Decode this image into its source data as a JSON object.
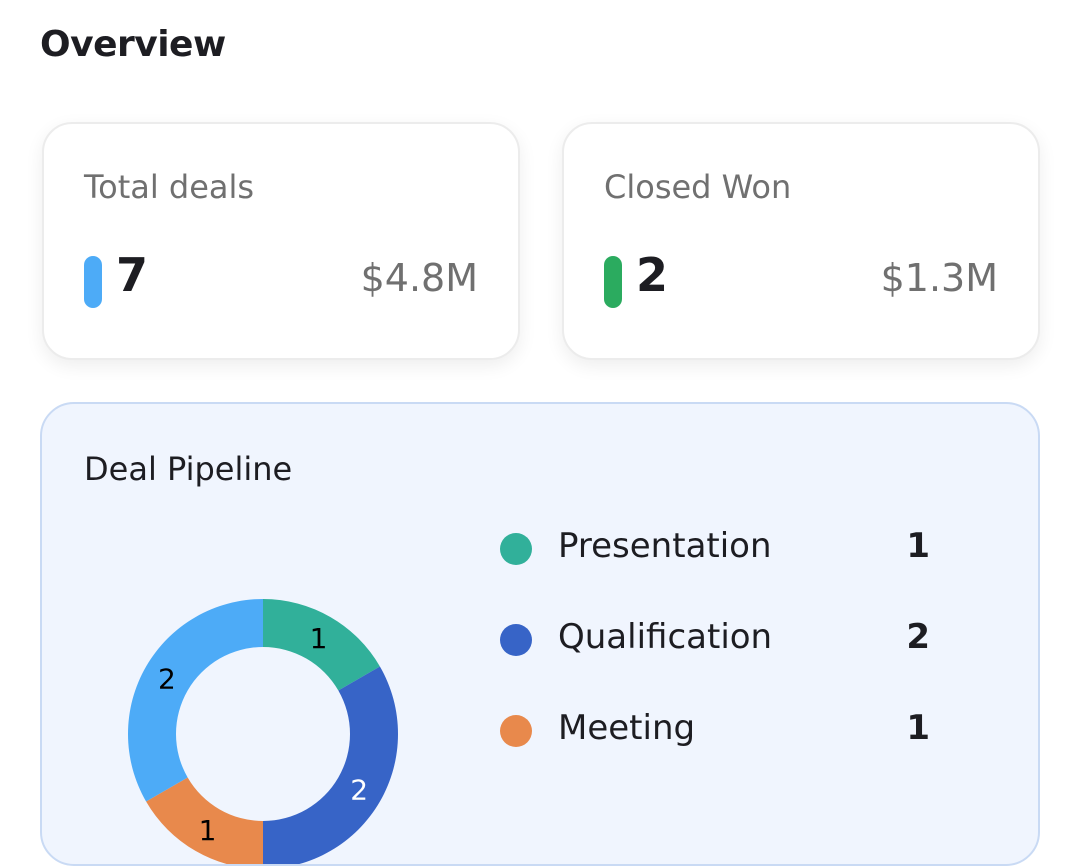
{
  "header": {
    "title": "Overview"
  },
  "cards": [
    {
      "label": "Total deals",
      "count": "7",
      "amount": "$4.8M",
      "color": "#4dabf7"
    },
    {
      "label": "Closed Won",
      "count": "2",
      "amount": "$1.3M",
      "color": "#2bab5f"
    }
  ],
  "pipeline": {
    "title": "Deal Pipeline",
    "legend": [
      {
        "name": "Presentation",
        "value": "1",
        "color": "#31b09a"
      },
      {
        "name": "Qualification",
        "value": "2",
        "color": "#3764c7"
      },
      {
        "name": "Meeting",
        "value": "1",
        "color": "#e8894c"
      }
    ]
  },
  "chart_data": {
    "type": "pie",
    "donut": true,
    "slices": [
      {
        "name": "Presentation",
        "value": 1,
        "color": "#31b09a",
        "label_color": "#000000"
      },
      {
        "name": "Qualification",
        "value": 2,
        "color": "#3764c7",
        "label_color": "#ffffff"
      },
      {
        "name": "Meeting",
        "value": 1,
        "color": "#e8894c",
        "label_color": "#000000"
      },
      {
        "value": 2,
        "color": "#4dabf7",
        "label_color": "#000000"
      }
    ]
  }
}
